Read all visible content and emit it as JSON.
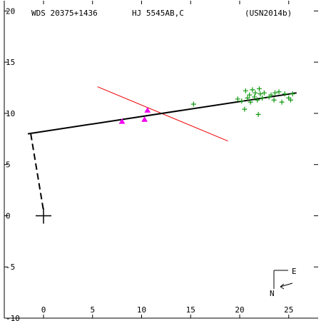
{
  "header": {
    "wds_id": "WDS 20375+1436",
    "pair": "HJ 5545AB,C",
    "reference": "(USN2014b)"
  },
  "compass": {
    "east_label": "E",
    "north_label": "N"
  },
  "chart_data": {
    "type": "scatter",
    "title": "",
    "xlabel": "",
    "ylabel": "",
    "xlim": [
      -4,
      28
    ],
    "ylim": [
      -10,
      21
    ],
    "x_ticks": [
      0,
      5,
      10,
      15,
      20,
      25
    ],
    "x_tick_labels": [
      "0",
      "5",
      "10",
      "15",
      "20",
      "25"
    ],
    "y_ticks": [
      -10,
      -5,
      0,
      5,
      10,
      15,
      20
    ],
    "y_tick_labels": [
      "-10",
      "-5",
      "0",
      "5",
      "10",
      "15",
      "20"
    ],
    "grid": false,
    "colors": {
      "axis": "#000000",
      "green": "#119911",
      "magenta": "#ee00ee",
      "red": "#ee0000",
      "black": "#000000"
    },
    "primary": {
      "x": 0,
      "y": 0,
      "marker": "plus"
    },
    "fit_line": {
      "x1": -1.6,
      "y1": 8.0,
      "x2": 25.8,
      "y2": 12.0,
      "color": "#000000"
    },
    "dashed_line": {
      "x1": -1.3,
      "y1": 8.0,
      "x2": 0,
      "y2": 0.5,
      "color": "#000000"
    },
    "red_line": {
      "x1": 5.5,
      "y1": 12.6,
      "x2": 18.8,
      "y2": 7.3,
      "color": "#ee0000"
    },
    "series": [
      {
        "marker": "triangle",
        "color": "#ee00ee",
        "points": [
          {
            "x": 8.0,
            "y": 9.2
          },
          {
            "x": 10.3,
            "y": 9.4
          },
          {
            "x": 10.6,
            "y": 10.3
          }
        ]
      },
      {
        "marker": "plus",
        "color": "#119911",
        "points": [
          {
            "x": 15.3,
            "y": 10.9
          },
          {
            "x": 19.8,
            "y": 11.4
          },
          {
            "x": 20.2,
            "y": 11.2
          },
          {
            "x": 20.5,
            "y": 10.4
          },
          {
            "x": 20.6,
            "y": 12.2
          },
          {
            "x": 20.8,
            "y": 11.5
          },
          {
            "x": 21.0,
            "y": 11.8
          },
          {
            "x": 21.1,
            "y": 11.1
          },
          {
            "x": 21.3,
            "y": 12.3
          },
          {
            "x": 21.5,
            "y": 11.6
          },
          {
            "x": 21.6,
            "y": 12.0
          },
          {
            "x": 21.8,
            "y": 11.3
          },
          {
            "x": 21.9,
            "y": 9.9
          },
          {
            "x": 22.0,
            "y": 12.4
          },
          {
            "x": 22.1,
            "y": 11.9
          },
          {
            "x": 22.3,
            "y": 11.5
          },
          {
            "x": 22.5,
            "y": 12.0
          },
          {
            "x": 23.0,
            "y": 11.6
          },
          {
            "x": 23.2,
            "y": 11.8
          },
          {
            "x": 23.5,
            "y": 11.3
          },
          {
            "x": 23.6,
            "y": 12.0
          },
          {
            "x": 24.0,
            "y": 12.1
          },
          {
            "x": 24.3,
            "y": 11.1
          },
          {
            "x": 24.6,
            "y": 11.9
          },
          {
            "x": 25.0,
            "y": 11.5
          },
          {
            "x": 25.2,
            "y": 11.3
          },
          {
            "x": 25.4,
            "y": 11.9
          }
        ]
      }
    ]
  }
}
